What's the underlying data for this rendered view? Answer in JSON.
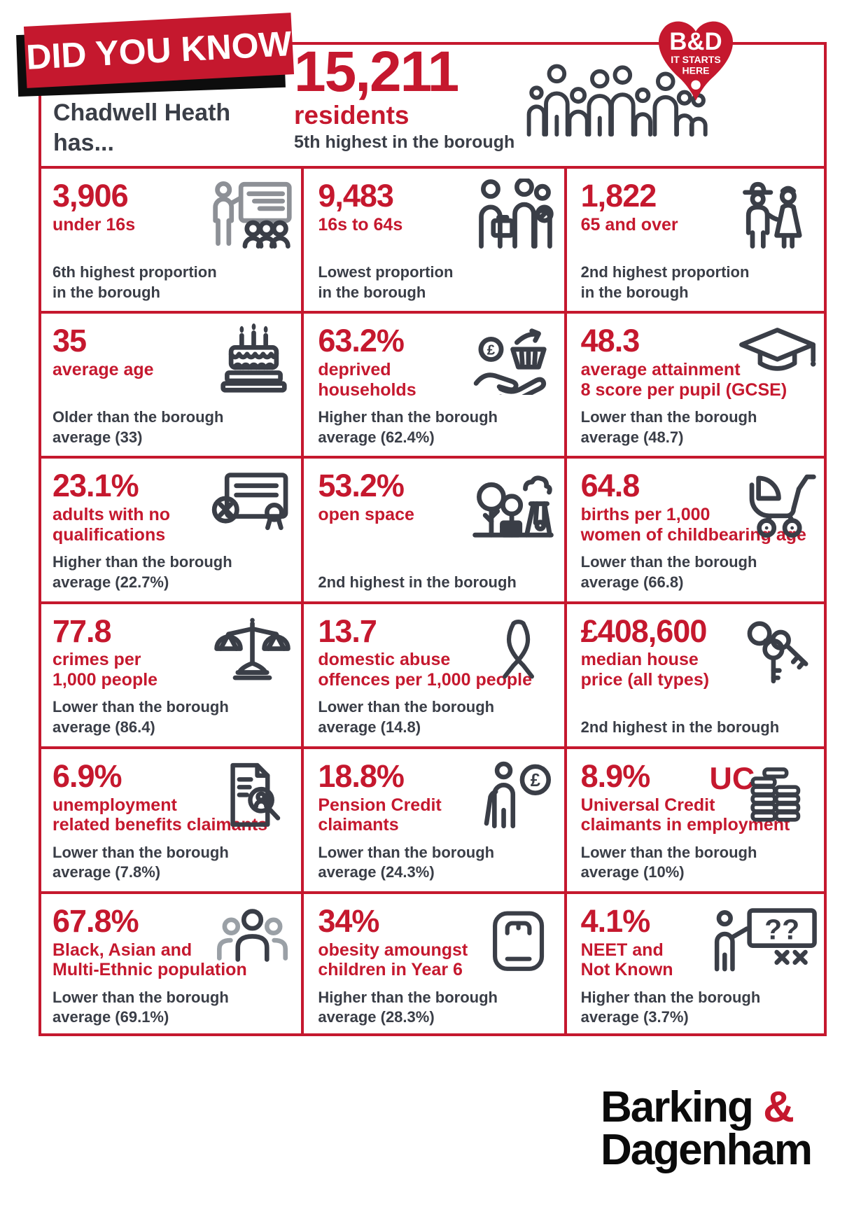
{
  "colors": {
    "red": "#c5182e",
    "dark": "#3a3e47",
    "gray": "#8d9096"
  },
  "page": {
    "banner": "DID YOU KNOW",
    "intro": "Chadwell Heath\nhas...",
    "headline": {
      "value": "15,211",
      "label": "residents",
      "caption": "5th highest in the borough"
    },
    "brand": {
      "name": "B&D",
      "line1": "IT STARTS",
      "line2": "HERE"
    }
  },
  "footer": {
    "line1_black": "Barking",
    "amp": "&",
    "line2": "Dagenham"
  },
  "stats": [
    {
      "value": "3,906",
      "label": "under 16s",
      "caption": "6th highest proportion\nin the borough",
      "icon": "classroom-icon"
    },
    {
      "value": "9,483",
      "label": "16s to 64s",
      "caption": "Lowest proportion\nin the borough",
      "icon": "working-adults-icon"
    },
    {
      "value": "1,822",
      "label": "65 and over",
      "caption": "2nd highest proportion\nin the borough",
      "icon": "elderly-couple-icon"
    },
    {
      "value": "35",
      "label": "average age",
      "caption": "Older than the borough\naverage (33)",
      "icon": "birthday-cake-icon"
    },
    {
      "value": "63.2%",
      "label": "deprived\nhouseholds",
      "caption": "Higher than the borough\naverage (62.4%)",
      "icon": "money-basket-icon"
    },
    {
      "value": "48.3",
      "label": "average attainment\n8 score per pupil (GCSE)",
      "caption": "Lower than the borough\naverage (48.7)",
      "icon": "graduation-cap-icon"
    },
    {
      "value": "23.1%",
      "label": "adults with no\nqualifications",
      "caption": "Higher than the borough\naverage (22.7%)",
      "icon": "certificate-x-icon"
    },
    {
      "value": "53.2%",
      "label": "open space",
      "caption": "2nd highest in the borough",
      "icon": "park-icon"
    },
    {
      "value": "64.8",
      "label": "births per 1,000\nwomen of childbearing age",
      "caption": "Lower than the borough\naverage (66.8)",
      "icon": "stroller-icon"
    },
    {
      "value": "77.8",
      "label": "crimes per\n1,000 people",
      "caption": "Lower than the borough\naverage (86.4)",
      "icon": "scales-icon"
    },
    {
      "value": "13.7",
      "label": "domestic abuse\noffences per 1,000 people",
      "caption": "Lower than the borough\naverage (14.8)",
      "icon": "ribbon-icon"
    },
    {
      "value": "£408,600",
      "label": "median house\nprice (all types)",
      "caption": "2nd highest in the borough",
      "icon": "keys-icon"
    },
    {
      "value": "6.9%",
      "label": "unemployment\nrelated benefits claimants",
      "caption": "Lower than the borough\naverage (7.8%)",
      "icon": "document-search-icon"
    },
    {
      "value": "18.8%",
      "label": "Pension Credit\nclaimants",
      "caption": "Lower than the borough\naverage (24.3%)",
      "icon": "pensioner-pound-icon"
    },
    {
      "value": "8.9%",
      "label": "Universal Credit\nclaimants in employment",
      "caption": "Lower than the borough\naverage (10%)",
      "icon": "uc-coins-icon"
    },
    {
      "value": "67.8%",
      "label": "Black, Asian and\nMulti-Ethnic population",
      "caption": "Lower than the borough\naverage (69.1%)",
      "icon": "diverse-group-icon"
    },
    {
      "value": "34%",
      "label": "obesity amoungst\nchildren in Year 6",
      "caption": "Higher than the borough\naverage (28.3%)",
      "icon": "weighing-scale-icon"
    },
    {
      "value": "4.1%",
      "label": "NEET and\nNot Known",
      "caption": "Higher than the borough\naverage (3.7%)",
      "icon": "question-board-icon"
    }
  ]
}
